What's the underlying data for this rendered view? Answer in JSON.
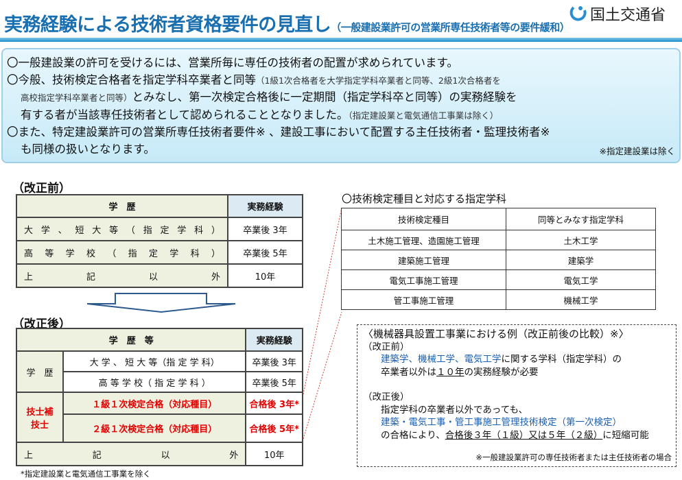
{
  "header": {
    "title": "実務経験による技術者資格要件の見直し",
    "subtitle": "（一般建設業許可の営業所専任技術者等の要件緩和）",
    "logo_text": "国土交通省",
    "logo_icon": "mlit-logo-icon"
  },
  "intro": {
    "line1": "〇一般建設業の許可を受けるには、営業所毎に専任の技術者の配置が求められています。",
    "line2a": "〇今般、技術検定合格者を指定学科卒業者と同等",
    "line2b": "（1級1次合格者を大学指定学科卒業者と同等、2級1次合格者を",
    "line3a": "高校指定学科卒業者と同等）",
    "line3b": "とみなし、第一次検定合格後に一定期間（指定学科卒と同等）の実務経験を",
    "line4a": "有する者が当該専任技術者として認められることとなりました。",
    "line4b": "（指定建設業と電気通信工事業は除く）",
    "line5": "〇また、特定建設業許可の営業所専任技術者要件※ 、建設工事において配置する主任技術者・監理技術者※",
    "line6": "も同様の扱いとなります。",
    "note": "※指定建設業は除く"
  },
  "before": {
    "label": "（改正前）",
    "head_edu": "学　歴",
    "head_exp": "実務経験",
    "rows": [
      {
        "edu": [
          "大",
          "学",
          "、",
          "短",
          "大",
          "等",
          "（",
          "指",
          "定",
          "学",
          "科",
          "）"
        ],
        "exp": "卒業後 3年"
      },
      {
        "edu": [
          "高",
          "等",
          "学",
          "校",
          "（",
          "指",
          "定",
          "学",
          "科",
          "）"
        ],
        "exp": "卒業後 5年"
      },
      {
        "edu": [
          "上",
          "記",
          "以",
          "外"
        ],
        "exp": "10年"
      }
    ]
  },
  "after": {
    "label": "（改正後）",
    "head_edu": "学　歴　等",
    "head_exp": "実務経験",
    "group1": "学　歴",
    "group2_line1": "技士補",
    "group2_line2": "技士",
    "rows": [
      {
        "edu": "大 学 、 短 大 等（指 定 学 科）",
        "exp": "卒業後 3年"
      },
      {
        "edu": "高 等 学 校（ 指 定 学 科 ）",
        "exp": "卒業後 5年"
      },
      {
        "edu": "１級１次検定合格（対応種目）",
        "exp": "合格後 3年*"
      },
      {
        "edu": "２級１次検定合格（対応種目）",
        "exp": "合格後 5年*"
      },
      {
        "edu": [
          "上",
          "記",
          "以",
          "外"
        ],
        "exp": "10年"
      }
    ],
    "footnote": "*指定建設業と電気通信工事業を除く"
  },
  "subjects": {
    "title": "〇技術検定種目と対応する指定学科",
    "headers": [
      "技術検定種目",
      "同等とみなす指定学科"
    ],
    "rows": [
      [
        "土木施工管理、造園施工管理",
        "土木工学"
      ],
      [
        "建築施工管理",
        "建築学"
      ],
      [
        "電気工事施工管理",
        "電気工学"
      ],
      [
        "管工事施工管理",
        "機械工学"
      ]
    ]
  },
  "example": {
    "title": "〈機械器具設置工事業における例（改正前後の比較）※〉",
    "before_label": "（改正前）",
    "b1_blue": "建築学、機械工学、電気工学",
    "b1_rest": "に関する学科（指定学科）の",
    "b2a": "卒業者以外は",
    "b2u": "１０年",
    "b2b": "の実務経験が必要",
    "after_label": "（改正後）",
    "a1": "指定学科の卒業者以外であっても、",
    "a2_blue": "建築・電気工事・管工事施工管理技術検定（第一次検定）",
    "a3a": "の合格により、",
    "a3u": "合格後３年（１級）又は５年（２級）",
    "a3b": "に短縮可能",
    "note": "※一般建設業許可の専任技術者または主任技術者の場合"
  },
  "colors": {
    "title": "#1a6fb0",
    "accent_red": "#e00000",
    "link_blue": "#1a5fb0",
    "table_bg": "#eef0e0",
    "header_bg": "#dcebf3"
  }
}
